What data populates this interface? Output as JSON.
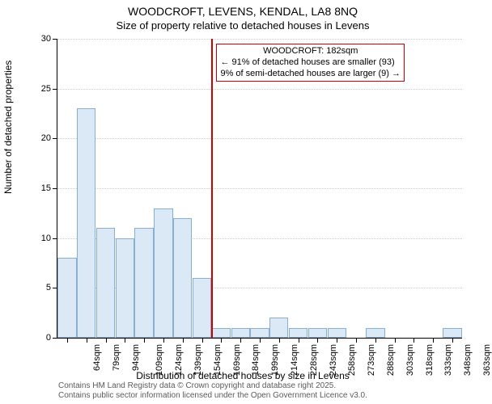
{
  "chart": {
    "type": "histogram",
    "title_main": "WOODCROFT, LEVENS, KENDAL, LA8 8NQ",
    "title_sub": "Size of property relative to detached houses in Levens",
    "title_fontsize": 14,
    "subtitle_fontsize": 13,
    "xlabel": "Distribution of detached houses by size in Levens",
    "ylabel": "Number of detached properties",
    "label_fontsize": 12,
    "background_color": "#ffffff",
    "bar_fill_color": "#dbe9f6",
    "bar_border_color": "#88aed0",
    "grid_color": "#cccccc",
    "ref_line_color": "#cc0000",
    "ylim": [
      0,
      30
    ],
    "ytick_step": 5,
    "yticks": [
      0,
      5,
      10,
      15,
      20,
      25,
      30
    ],
    "categories": [
      "64sqm",
      "79sqm",
      "94sqm",
      "109sqm",
      "124sqm",
      "139sqm",
      "154sqm",
      "169sqm",
      "184sqm",
      "199sqm",
      "214sqm",
      "228sqm",
      "243sqm",
      "258sqm",
      "273sqm",
      "288sqm",
      "303sqm",
      "318sqm",
      "333sqm",
      "348sqm",
      "363sqm"
    ],
    "values": [
      8,
      23,
      11,
      10,
      11,
      13,
      12,
      6,
      1,
      1,
      1,
      2,
      1,
      1,
      1,
      0,
      1,
      0,
      0,
      0,
      1
    ],
    "bar_width_rel": 0.98,
    "reference_x_index": 8.0,
    "annotation": {
      "line1": "WOODCROFT: 182sqm",
      "line2": "← 91% of detached houses are smaller (93)",
      "line3": "9% of semi-detached houses are larger (9) →",
      "border_color": "#cc0000",
      "bg_color": "#ffffff",
      "fontsize": 11
    },
    "footer": {
      "line1": "Contains HM Land Registry data © Crown copyright and database right 2025.",
      "line2": "Contains public sector information licensed under the Open Government Licence v3.0.",
      "color": "#5b5b5b",
      "fontsize": 10
    }
  }
}
